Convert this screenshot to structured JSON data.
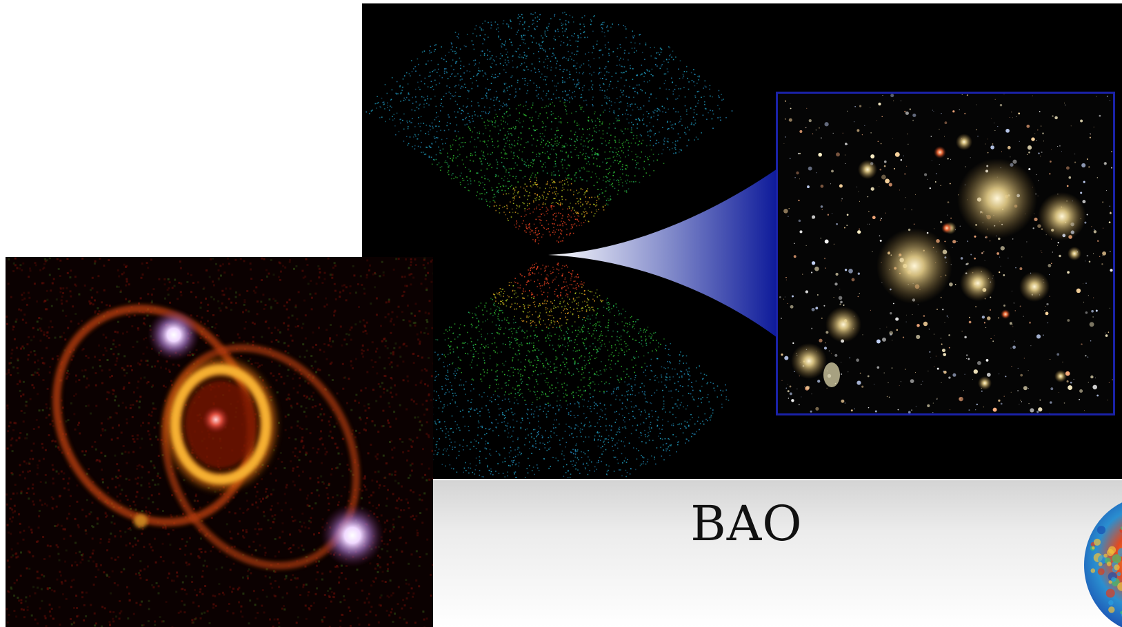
{
  "slide": {
    "bao_label": "BAO"
  },
  "images": {
    "survey": {
      "icon": "galaxy-survey-cone-image"
    },
    "cluster": {
      "icon": "galaxy-cluster-image"
    },
    "supernova": {
      "icon": "supernova-ring-image"
    },
    "cmb": {
      "icon": "cmb-globe-image"
    }
  },
  "colors": {
    "slide_background": "#ffffff",
    "panel_background": "#000000",
    "inset_border": "#1a22a8",
    "zoom_wedge": "#0d1a9a",
    "ring_color": "#f0a020",
    "outer_ring_color": "#c04010"
  }
}
